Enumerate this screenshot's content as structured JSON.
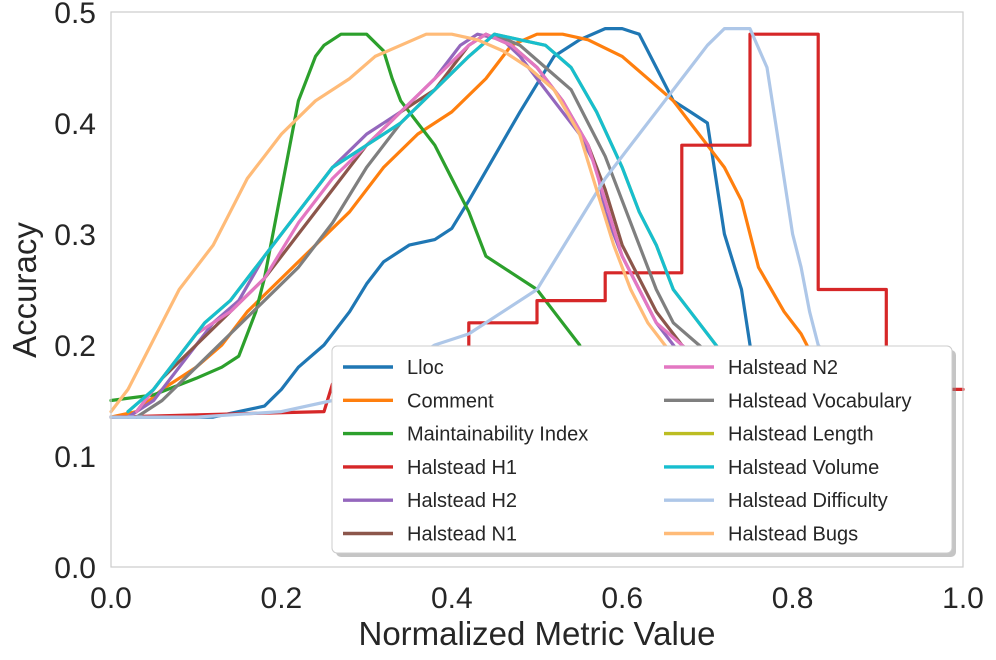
{
  "chart_data": {
    "type": "line",
    "title": "",
    "xlabel": "Normalized Metric Value",
    "ylabel": "Accuracy",
    "xlim": [
      0.0,
      1.0
    ],
    "ylim": [
      0.0,
      0.5
    ],
    "xticks": [
      "0.0",
      "0.2",
      "0.4",
      "0.6",
      "0.8",
      "1.0"
    ],
    "yticks": [
      "0.0",
      "0.1",
      "0.2",
      "0.3",
      "0.4",
      "0.5"
    ],
    "grid": false,
    "legend_position": "lower-right",
    "series": [
      {
        "name": "Lloc",
        "color": "#1f77b4",
        "points": [
          [
            0.0,
            0.135
          ],
          [
            0.12,
            0.135
          ],
          [
            0.15,
            0.14
          ],
          [
            0.18,
            0.145
          ],
          [
            0.2,
            0.16
          ],
          [
            0.22,
            0.18
          ],
          [
            0.25,
            0.2
          ],
          [
            0.28,
            0.23
          ],
          [
            0.3,
            0.255
          ],
          [
            0.32,
            0.275
          ],
          [
            0.35,
            0.29
          ],
          [
            0.38,
            0.295
          ],
          [
            0.4,
            0.305
          ],
          [
            0.42,
            0.33
          ],
          [
            0.45,
            0.37
          ],
          [
            0.48,
            0.41
          ],
          [
            0.5,
            0.435
          ],
          [
            0.52,
            0.46
          ],
          [
            0.55,
            0.475
          ],
          [
            0.58,
            0.485
          ],
          [
            0.6,
            0.485
          ],
          [
            0.62,
            0.48
          ],
          [
            0.64,
            0.45
          ],
          [
            0.66,
            0.42
          ],
          [
            0.68,
            0.41
          ],
          [
            0.7,
            0.4
          ],
          [
            0.72,
            0.3
          ],
          [
            0.74,
            0.25
          ],
          [
            0.75,
            0.2
          ],
          [
            0.76,
            0.15
          ]
        ]
      },
      {
        "name": "Comment",
        "color": "#ff7f0e",
        "points": [
          [
            0.0,
            0.135
          ],
          [
            0.03,
            0.14
          ],
          [
            0.06,
            0.16
          ],
          [
            0.1,
            0.18
          ],
          [
            0.13,
            0.2
          ],
          [
            0.16,
            0.23
          ],
          [
            0.2,
            0.26
          ],
          [
            0.24,
            0.29
          ],
          [
            0.28,
            0.32
          ],
          [
            0.32,
            0.36
          ],
          [
            0.36,
            0.39
          ],
          [
            0.4,
            0.41
          ],
          [
            0.44,
            0.44
          ],
          [
            0.47,
            0.47
          ],
          [
            0.5,
            0.48
          ],
          [
            0.53,
            0.48
          ],
          [
            0.56,
            0.475
          ],
          [
            0.6,
            0.46
          ],
          [
            0.63,
            0.44
          ],
          [
            0.66,
            0.42
          ],
          [
            0.7,
            0.38
          ],
          [
            0.72,
            0.36
          ],
          [
            0.74,
            0.33
          ],
          [
            0.76,
            0.27
          ],
          [
            0.79,
            0.23
          ],
          [
            0.81,
            0.21
          ],
          [
            0.83,
            0.18
          ],
          [
            0.85,
            0.16
          ]
        ]
      },
      {
        "name": "Maintainability Index",
        "color": "#2ca02c",
        "points": [
          [
            0.0,
            0.15
          ],
          [
            0.05,
            0.155
          ],
          [
            0.1,
            0.17
          ],
          [
            0.13,
            0.18
          ],
          [
            0.15,
            0.19
          ],
          [
            0.16,
            0.21
          ],
          [
            0.17,
            0.23
          ],
          [
            0.18,
            0.26
          ],
          [
            0.19,
            0.3
          ],
          [
            0.2,
            0.34
          ],
          [
            0.21,
            0.38
          ],
          [
            0.22,
            0.42
          ],
          [
            0.23,
            0.44
          ],
          [
            0.24,
            0.46
          ],
          [
            0.25,
            0.47
          ],
          [
            0.27,
            0.48
          ],
          [
            0.3,
            0.48
          ],
          [
            0.32,
            0.465
          ],
          [
            0.33,
            0.44
          ],
          [
            0.34,
            0.42
          ],
          [
            0.36,
            0.4
          ],
          [
            0.38,
            0.38
          ],
          [
            0.4,
            0.35
          ],
          [
            0.42,
            0.32
          ],
          [
            0.44,
            0.28
          ],
          [
            0.47,
            0.265
          ],
          [
            0.5,
            0.25
          ],
          [
            0.52,
            0.23
          ],
          [
            0.55,
            0.2
          ],
          [
            0.56,
            0.18
          ]
        ]
      },
      {
        "name": "Halstead H1",
        "color": "#d62728",
        "points": [
          [
            0.0,
            0.135
          ],
          [
            0.25,
            0.14
          ],
          [
            0.26,
            0.165
          ],
          [
            0.42,
            0.165
          ],
          [
            0.42,
            0.22
          ],
          [
            0.5,
            0.22
          ],
          [
            0.5,
            0.24
          ],
          [
            0.58,
            0.24
          ],
          [
            0.58,
            0.265
          ],
          [
            0.67,
            0.265
          ],
          [
            0.67,
            0.38
          ],
          [
            0.75,
            0.38
          ],
          [
            0.75,
            0.48
          ],
          [
            0.83,
            0.48
          ],
          [
            0.83,
            0.25
          ],
          [
            0.91,
            0.25
          ],
          [
            0.91,
            0.16
          ],
          [
            1.0,
            0.16
          ]
        ]
      },
      {
        "name": "Halstead H2",
        "color": "#9467bd",
        "points": [
          [
            0.02,
            0.135
          ],
          [
            0.05,
            0.15
          ],
          [
            0.08,
            0.18
          ],
          [
            0.1,
            0.2
          ],
          [
            0.12,
            0.22
          ],
          [
            0.15,
            0.24
          ],
          [
            0.18,
            0.28
          ],
          [
            0.22,
            0.32
          ],
          [
            0.26,
            0.36
          ],
          [
            0.3,
            0.39
          ],
          [
            0.34,
            0.41
          ],
          [
            0.38,
            0.44
          ],
          [
            0.41,
            0.47
          ],
          [
            0.43,
            0.48
          ],
          [
            0.46,
            0.475
          ],
          [
            0.48,
            0.46
          ],
          [
            0.5,
            0.44
          ],
          [
            0.52,
            0.42
          ],
          [
            0.55,
            0.39
          ],
          [
            0.57,
            0.36
          ],
          [
            0.58,
            0.32
          ],
          [
            0.6,
            0.28
          ],
          [
            0.62,
            0.25
          ],
          [
            0.64,
            0.22
          ],
          [
            0.66,
            0.2
          ],
          [
            0.68,
            0.18
          ],
          [
            0.7,
            0.16
          ]
        ]
      },
      {
        "name": "Halstead N1",
        "color": "#8c564b",
        "points": [
          [
            0.03,
            0.14
          ],
          [
            0.06,
            0.17
          ],
          [
            0.1,
            0.2
          ],
          [
            0.14,
            0.23
          ],
          [
            0.18,
            0.26
          ],
          [
            0.22,
            0.3
          ],
          [
            0.26,
            0.34
          ],
          [
            0.3,
            0.38
          ],
          [
            0.34,
            0.41
          ],
          [
            0.38,
            0.43
          ],
          [
            0.42,
            0.47
          ],
          [
            0.44,
            0.48
          ],
          [
            0.47,
            0.47
          ],
          [
            0.5,
            0.45
          ],
          [
            0.53,
            0.42
          ],
          [
            0.56,
            0.38
          ],
          [
            0.58,
            0.34
          ],
          [
            0.6,
            0.29
          ],
          [
            0.62,
            0.26
          ],
          [
            0.64,
            0.23
          ],
          [
            0.67,
            0.2
          ],
          [
            0.7,
            0.18
          ]
        ]
      },
      {
        "name": "Halstead N2",
        "color": "#e377c2",
        "points": [
          [
            0.03,
            0.14
          ],
          [
            0.06,
            0.17
          ],
          [
            0.1,
            0.21
          ],
          [
            0.14,
            0.23
          ],
          [
            0.18,
            0.26
          ],
          [
            0.22,
            0.31
          ],
          [
            0.26,
            0.35
          ],
          [
            0.3,
            0.38
          ],
          [
            0.34,
            0.41
          ],
          [
            0.38,
            0.44
          ],
          [
            0.42,
            0.47
          ],
          [
            0.44,
            0.48
          ],
          [
            0.47,
            0.47
          ],
          [
            0.5,
            0.45
          ],
          [
            0.53,
            0.42
          ],
          [
            0.56,
            0.38
          ],
          [
            0.58,
            0.33
          ],
          [
            0.6,
            0.28
          ],
          [
            0.62,
            0.25
          ],
          [
            0.64,
            0.22
          ],
          [
            0.67,
            0.2
          ],
          [
            0.7,
            0.18
          ]
        ]
      },
      {
        "name": "Halstead Vocabulary",
        "color": "#7f7f7f",
        "points": [
          [
            0.03,
            0.135
          ],
          [
            0.06,
            0.15
          ],
          [
            0.1,
            0.18
          ],
          [
            0.14,
            0.21
          ],
          [
            0.18,
            0.24
          ],
          [
            0.22,
            0.27
          ],
          [
            0.26,
            0.31
          ],
          [
            0.3,
            0.36
          ],
          [
            0.34,
            0.4
          ],
          [
            0.38,
            0.43
          ],
          [
            0.42,
            0.46
          ],
          [
            0.45,
            0.48
          ],
          [
            0.48,
            0.47
          ],
          [
            0.51,
            0.45
          ],
          [
            0.54,
            0.43
          ],
          [
            0.56,
            0.4
          ],
          [
            0.58,
            0.37
          ],
          [
            0.6,
            0.33
          ],
          [
            0.62,
            0.29
          ],
          [
            0.64,
            0.25
          ],
          [
            0.66,
            0.22
          ],
          [
            0.69,
            0.2
          ],
          [
            0.72,
            0.18
          ]
        ]
      },
      {
        "name": "Halstead Length",
        "color": "#bcbd22",
        "points": [
          [
            0.02,
            0.14
          ],
          [
            0.05,
            0.16
          ],
          [
            0.08,
            0.19
          ],
          [
            0.11,
            0.22
          ],
          [
            0.14,
            0.24
          ],
          [
            0.18,
            0.28
          ],
          [
            0.22,
            0.32
          ],
          [
            0.26,
            0.36
          ],
          [
            0.3,
            0.38
          ],
          [
            0.34,
            0.4
          ],
          [
            0.38,
            0.43
          ],
          [
            0.42,
            0.46
          ],
          [
            0.45,
            0.48
          ],
          [
            0.48,
            0.475
          ],
          [
            0.51,
            0.47
          ],
          [
            0.54,
            0.45
          ],
          [
            0.57,
            0.41
          ],
          [
            0.6,
            0.36
          ],
          [
            0.62,
            0.32
          ],
          [
            0.64,
            0.29
          ],
          [
            0.66,
            0.25
          ],
          [
            0.68,
            0.23
          ],
          [
            0.7,
            0.21
          ],
          [
            0.72,
            0.19
          ],
          [
            0.74,
            0.17
          ]
        ]
      },
      {
        "name": "Halstead Volume",
        "color": "#17becf",
        "points": [
          [
            0.02,
            0.14
          ],
          [
            0.05,
            0.16
          ],
          [
            0.08,
            0.19
          ],
          [
            0.11,
            0.22
          ],
          [
            0.14,
            0.24
          ],
          [
            0.18,
            0.28
          ],
          [
            0.22,
            0.32
          ],
          [
            0.26,
            0.36
          ],
          [
            0.3,
            0.38
          ],
          [
            0.34,
            0.4
          ],
          [
            0.38,
            0.43
          ],
          [
            0.42,
            0.46
          ],
          [
            0.45,
            0.48
          ],
          [
            0.48,
            0.475
          ],
          [
            0.51,
            0.47
          ],
          [
            0.54,
            0.45
          ],
          [
            0.57,
            0.41
          ],
          [
            0.6,
            0.36
          ],
          [
            0.62,
            0.32
          ],
          [
            0.64,
            0.29
          ],
          [
            0.66,
            0.25
          ],
          [
            0.68,
            0.23
          ],
          [
            0.7,
            0.21
          ],
          [
            0.72,
            0.19
          ],
          [
            0.74,
            0.17
          ]
        ]
      },
      {
        "name": "Halstead Difficulty",
        "color": "#aec7e8",
        "points": [
          [
            0.0,
            0.135
          ],
          [
            0.1,
            0.135
          ],
          [
            0.2,
            0.14
          ],
          [
            0.26,
            0.15
          ],
          [
            0.3,
            0.16
          ],
          [
            0.34,
            0.18
          ],
          [
            0.38,
            0.2
          ],
          [
            0.42,
            0.21
          ],
          [
            0.46,
            0.23
          ],
          [
            0.5,
            0.25
          ],
          [
            0.54,
            0.3
          ],
          [
            0.58,
            0.35
          ],
          [
            0.62,
            0.39
          ],
          [
            0.65,
            0.42
          ],
          [
            0.68,
            0.45
          ],
          [
            0.7,
            0.47
          ],
          [
            0.72,
            0.485
          ],
          [
            0.75,
            0.485
          ],
          [
            0.77,
            0.45
          ],
          [
            0.78,
            0.4
          ],
          [
            0.79,
            0.35
          ],
          [
            0.8,
            0.3
          ],
          [
            0.81,
            0.27
          ],
          [
            0.82,
            0.23
          ],
          [
            0.83,
            0.2
          ],
          [
            0.85,
            0.18
          ]
        ]
      },
      {
        "name": "Halstead Bugs",
        "color": "#ffbb78",
        "points": [
          [
            0.0,
            0.14
          ],
          [
            0.02,
            0.16
          ],
          [
            0.04,
            0.19
          ],
          [
            0.06,
            0.22
          ],
          [
            0.08,
            0.25
          ],
          [
            0.1,
            0.27
          ],
          [
            0.12,
            0.29
          ],
          [
            0.14,
            0.32
          ],
          [
            0.16,
            0.35
          ],
          [
            0.18,
            0.37
          ],
          [
            0.2,
            0.39
          ],
          [
            0.24,
            0.42
          ],
          [
            0.28,
            0.44
          ],
          [
            0.31,
            0.46
          ],
          [
            0.34,
            0.47
          ],
          [
            0.37,
            0.48
          ],
          [
            0.4,
            0.48
          ],
          [
            0.43,
            0.475
          ],
          [
            0.46,
            0.465
          ],
          [
            0.49,
            0.45
          ],
          [
            0.52,
            0.43
          ],
          [
            0.55,
            0.39
          ],
          [
            0.57,
            0.34
          ],
          [
            0.59,
            0.29
          ],
          [
            0.61,
            0.25
          ],
          [
            0.63,
            0.22
          ],
          [
            0.65,
            0.2
          ],
          [
            0.67,
            0.18
          ]
        ]
      }
    ]
  }
}
